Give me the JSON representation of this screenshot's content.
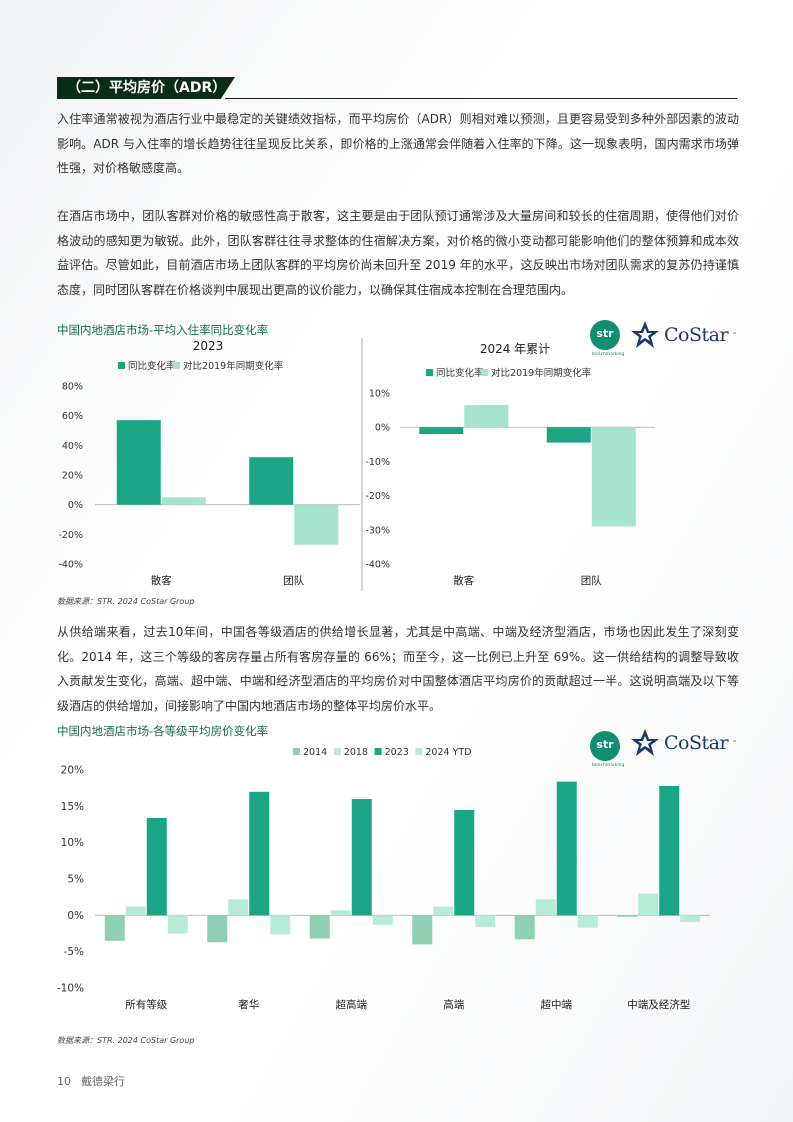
{
  "section_title": "（二）平均房价（ADR）",
  "paragraphs": [
    "入住率通常被视为酒店行业中最稳定的关键绩效指标，而平均房价（ADR）则相对难以预测，且更容易受到多种外部因素的波动影响。ADR 与入住率的增长趋势往往呈现反比关系，即价格的上涨通常会伴随着入住率的下降。这一现象表明，国内需求市场弹性强，对价格敏感度高。",
    "在酒店市场中，团队客群对价格的敏感性高于散客，这主要是由于团队预订通常涉及大量房间和较长的住宿周期，使得他们对价格波动的感知更为敏锐。此外，团队客群往往寻求整体的住宿解决方案，对价格的微小变动都可能影响他们的整体预算和成本效益评估。尽管如此，目前酒店市场上团队客群的平均房价尚未回升至 2019 年的水平，这反映出市场对团队需求的复苏仍持谨慎态度，同时团队客群在价格谈判中展现出更高的议价能力，以确保其住宿成本控制在合理范围内。",
    "从供给端来看，过去10年间，中国各等级酒店的供给增长显著，尤其是中高端、中端及经济型酒店，市场也因此发生了深刻变化。2014 年，这三个等级的客房存量占所有客房存量的 66%；而至今，这一比例已上升至 69%。这一供给结构的调整导致收入贡献发生变化，高端、超中端、中端和经济型酒店的平均房价对中国整体酒店平均房价的贡献超过一半。这说明高端及以下等级酒店的供给增加，间接影响了中国内地酒店市场的整体平均房价水平。"
  ],
  "chart1": {
    "title": "中国内地酒店市场-平均入住率同比变化率",
    "source": "数据来源：STR. 2024 CoStar Group"
  },
  "chart2": {
    "title": "中国内地酒店市场-各等级平均房价变化率",
    "source": "数据来源：STR. 2024 CoStar Group"
  },
  "logos": {
    "str": "str",
    "str_sub": "benchmarking",
    "costar": "CoStar",
    "costar_tm": "™"
  },
  "footer": {
    "page": "10",
    "brand": "戴德梁行"
  },
  "colors": {
    "dark_green": "#1aa585",
    "light_green": "#a6e4d0",
    "mid_green": "#8fcfb3",
    "pale_green": "#b7ead7",
    "heading_bg": "#0a2d1a"
  },
  "chart_data": [
    {
      "type": "bar",
      "subtitle": "2023",
      "categories": [
        "散客",
        "团队"
      ],
      "series": [
        {
          "name": "同比变化率",
          "values": [
            57,
            32
          ]
        },
        {
          "name": "对比2019年同期变化率",
          "values": [
            5,
            -27
          ]
        }
      ],
      "ylim": [
        -40,
        80
      ],
      "yticks": [
        -40,
        -20,
        0,
        20,
        40,
        60,
        80
      ],
      "legend": "top"
    },
    {
      "type": "bar",
      "subtitle": "2024 年累计",
      "categories": [
        "散客",
        "团队"
      ],
      "series": [
        {
          "name": "同比变化率",
          "values": [
            -2,
            -4.5
          ]
        },
        {
          "name": "对比2019年同期变化率",
          "values": [
            6.5,
            -29
          ]
        }
      ],
      "ylim": [
        -40,
        10
      ],
      "yticks": [
        -40,
        -30,
        -20,
        -10,
        0,
        10
      ],
      "legend": "top"
    },
    {
      "type": "bar",
      "categories": [
        "所有等级",
        "奢华",
        "超高端",
        "高端",
        "超中端",
        "中端及经济型"
      ],
      "series": [
        {
          "name": "2014",
          "values": [
            -3.5,
            -3.7,
            -3.2,
            -4.0,
            -3.3,
            -0.2
          ]
        },
        {
          "name": "2018",
          "values": [
            1.2,
            2.2,
            0.7,
            1.2,
            2.2,
            3.0
          ]
        },
        {
          "name": "2023",
          "values": [
            13.4,
            17.0,
            16.0,
            14.5,
            18.4,
            17.8
          ]
        },
        {
          "name": "2024 YTD",
          "values": [
            -2.5,
            -2.6,
            -1.3,
            -1.6,
            -1.7,
            -0.9
          ]
        }
      ],
      "ylim": [
        -10,
        20
      ],
      "yticks": [
        -10,
        -5,
        0,
        5,
        10,
        15,
        20
      ],
      "tick_suffix": "%",
      "legend": "top"
    }
  ]
}
